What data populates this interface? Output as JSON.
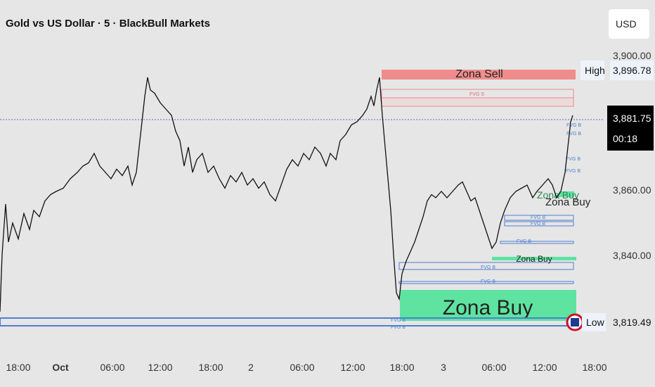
{
  "header": {
    "title": "Gold vs US Dollar · 5 · BlackBull Markets",
    "currency": "USD"
  },
  "chart_data": {
    "type": "line",
    "title": "Gold vs US Dollar · 5 · BlackBull Markets",
    "x_ticks": [
      "18:00",
      "Oct",
      "06:00",
      "12:00",
      "18:00",
      "2",
      "06:00",
      "12:00",
      "18:00",
      "3",
      "06:00",
      "12:00",
      "18:00"
    ],
    "y_ticks": [
      "3,900.00",
      "3,860.00",
      "3,840.00"
    ],
    "ylim": [
      3814,
      3902
    ],
    "current_price": "3,881.75",
    "countdown": "00:18",
    "high": {
      "label": "High",
      "value": "3,896.78"
    },
    "low": {
      "label": "Low",
      "value": "3,819.49"
    },
    "zones": {
      "sell": "Zona Sell",
      "buy_large": "Zona Buy",
      "buy_mid": "Zona Buy",
      "buy_small": "Zona Buy",
      "buy_small_shadow": "Zona Buy"
    },
    "fvg_labels": {
      "sell": "FVG S",
      "buy": "FVG B"
    },
    "colors": {
      "sell_zone": "#f08c8c",
      "buy_zone": "#5ee3a1",
      "fvg_blue": "#4f7fd0",
      "price_line": "#111111",
      "current_line": "#7a5fc8"
    },
    "price_path": [
      [
        0,
        3820
      ],
      [
        3,
        3838
      ],
      [
        8,
        3854
      ],
      [
        12,
        3842
      ],
      [
        18,
        3848
      ],
      [
        26,
        3843
      ],
      [
        34,
        3851
      ],
      [
        42,
        3846
      ],
      [
        48,
        3852
      ],
      [
        56,
        3850
      ],
      [
        64,
        3855
      ],
      [
        72,
        3857
      ],
      [
        80,
        3858
      ],
      [
        90,
        3859
      ],
      [
        100,
        3862
      ],
      [
        110,
        3864
      ],
      [
        118,
        3866
      ],
      [
        126,
        3867
      ],
      [
        134,
        3870
      ],
      [
        142,
        3866
      ],
      [
        150,
        3864
      ],
      [
        158,
        3862
      ],
      [
        166,
        3865
      ],
      [
        174,
        3863
      ],
      [
        182,
        3866
      ],
      [
        188,
        3860
      ],
      [
        194,
        3864
      ],
      [
        200,
        3876
      ],
      [
        206,
        3888
      ],
      [
        210,
        3894
      ],
      [
        214,
        3890
      ],
      [
        220,
        3889
      ],
      [
        228,
        3886
      ],
      [
        236,
        3884
      ],
      [
        244,
        3882
      ],
      [
        250,
        3877
      ],
      [
        256,
        3874
      ],
      [
        262,
        3866
      ],
      [
        268,
        3872
      ],
      [
        274,
        3864
      ],
      [
        280,
        3868
      ],
      [
        288,
        3870
      ],
      [
        296,
        3864
      ],
      [
        304,
        3866
      ],
      [
        312,
        3862
      ],
      [
        320,
        3859
      ],
      [
        328,
        3863
      ],
      [
        336,
        3861
      ],
      [
        344,
        3864
      ],
      [
        352,
        3860
      ],
      [
        360,
        3862
      ],
      [
        368,
        3859
      ],
      [
        376,
        3861
      ],
      [
        384,
        3857
      ],
      [
        392,
        3855
      ],
      [
        400,
        3860
      ],
      [
        408,
        3865
      ],
      [
        416,
        3868
      ],
      [
        424,
        3866
      ],
      [
        432,
        3870
      ],
      [
        440,
        3868
      ],
      [
        448,
        3872
      ],
      [
        456,
        3870
      ],
      [
        464,
        3866
      ],
      [
        470,
        3870
      ],
      [
        478,
        3868
      ],
      [
        484,
        3874
      ],
      [
        492,
        3876
      ],
      [
        500,
        3879
      ],
      [
        508,
        3880
      ],
      [
        516,
        3882
      ],
      [
        522,
        3884
      ],
      [
        528,
        3888
      ],
      [
        532,
        3885
      ],
      [
        536,
        3890
      ],
      [
        540,
        3894
      ],
      [
        544,
        3882
      ],
      [
        548,
        3872
      ],
      [
        552,
        3862
      ],
      [
        556,
        3852
      ],
      [
        560,
        3838
      ],
      [
        564,
        3826
      ],
      [
        568,
        3824
      ],
      [
        572,
        3832
      ],
      [
        578,
        3836
      ],
      [
        584,
        3839
      ],
      [
        590,
        3842
      ],
      [
        596,
        3846
      ],
      [
        602,
        3850
      ],
      [
        608,
        3855
      ],
      [
        614,
        3857
      ],
      [
        620,
        3856
      ],
      [
        628,
        3858
      ],
      [
        636,
        3856
      ],
      [
        644,
        3858
      ],
      [
        652,
        3860
      ],
      [
        658,
        3861
      ],
      [
        664,
        3858
      ],
      [
        670,
        3855
      ],
      [
        676,
        3856
      ],
      [
        682,
        3852
      ],
      [
        688,
        3848
      ],
      [
        694,
        3844
      ],
      [
        700,
        3840
      ],
      [
        706,
        3842
      ],
      [
        712,
        3848
      ],
      [
        718,
        3852
      ],
      [
        726,
        3856
      ],
      [
        734,
        3858
      ],
      [
        742,
        3859
      ],
      [
        750,
        3860
      ],
      [
        758,
        3856
      ],
      [
        764,
        3858
      ],
      [
        772,
        3860
      ],
      [
        780,
        3862
      ],
      [
        786,
        3860
      ],
      [
        792,
        3856
      ],
      [
        798,
        3858
      ],
      [
        804,
        3864
      ],
      [
        808,
        3872
      ],
      [
        812,
        3880
      ],
      [
        815,
        3882
      ]
    ]
  }
}
